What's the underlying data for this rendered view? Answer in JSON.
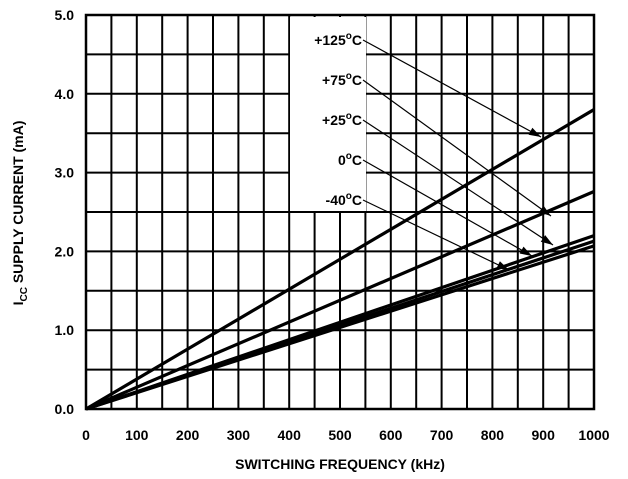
{
  "chart_data": {
    "type": "line",
    "xlabel": "SWITCHING FREQUENCY (kHz)",
    "ylabel": {
      "main": "I",
      "sub": "CC",
      "rest": " SUPPLY CURRENT (mA)"
    },
    "xlim": [
      0,
      1000
    ],
    "ylim": [
      0,
      5.0
    ],
    "x_ticks": [
      "0",
      "100",
      "200",
      "300",
      "400",
      "500",
      "600",
      "700",
      "800",
      "900",
      "1000"
    ],
    "y_ticks": [
      "0.0",
      "1.0",
      "2.0",
      "3.0",
      "4.0",
      "5.0"
    ],
    "grid": true,
    "series": [
      {
        "name": "+125°C",
        "label": {
          "value": "+125",
          "deg": "o",
          "unit": "C"
        },
        "x": [
          0,
          1000
        ],
        "y": [
          0,
          3.8
        ]
      },
      {
        "name": "+75°C",
        "label": {
          "value": "+75",
          "deg": "o",
          "unit": "C"
        },
        "x": [
          0,
          1000
        ],
        "y": [
          0,
          2.76
        ]
      },
      {
        "name": "+25°C",
        "label": {
          "value": "+25",
          "deg": "o",
          "unit": "C"
        },
        "x": [
          0,
          1000
        ],
        "y": [
          0,
          2.2
        ]
      },
      {
        "name": "0°C",
        "label": {
          "value": "0",
          "deg": "o",
          "unit": "C"
        },
        "x": [
          0,
          1000
        ],
        "y": [
          0,
          2.13
        ]
      },
      {
        "name": "-40°C",
        "label": {
          "value": "-40",
          "deg": "o",
          "unit": "C"
        },
        "x": [
          0,
          1000
        ],
        "y": [
          0,
          2.07
        ]
      }
    ]
  }
}
